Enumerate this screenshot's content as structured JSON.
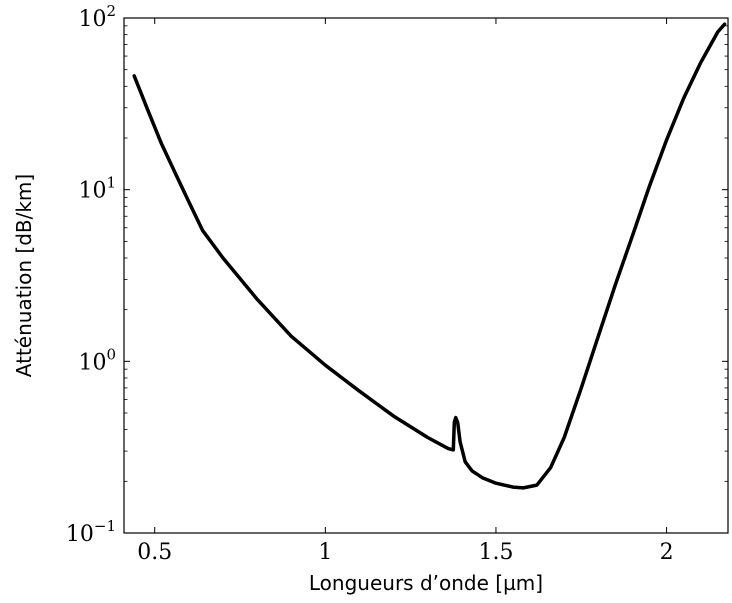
{
  "chart_data": {
    "type": "line",
    "xlabel": "Longueurs d’onde [µm]",
    "ylabel": "Atténuation [dB/km]",
    "xlim": [
      0.41,
      2.18
    ],
    "ylim": [
      0.1,
      100
    ],
    "yscale": "log",
    "grid": false,
    "x_ticks": [
      {
        "value": 0.5,
        "label": "0.5"
      },
      {
        "value": 1,
        "label": "1"
      },
      {
        "value": 1.5,
        "label": "1.5"
      },
      {
        "value": 2,
        "label": "2"
      }
    ],
    "y_ticks": [
      {
        "value": 0.1,
        "base": "10",
        "exp": "−1"
      },
      {
        "value": 1,
        "base": "10",
        "exp": "0"
      },
      {
        "value": 10,
        "base": "10",
        "exp": "1"
      },
      {
        "value": 100,
        "base": "10",
        "exp": "2"
      }
    ],
    "series": [
      {
        "color": "#000000",
        "x": [
          0.44,
          0.48,
          0.52,
          0.56,
          0.6,
          0.64,
          0.7,
          0.8,
          0.9,
          1.0,
          1.1,
          1.2,
          1.3,
          1.36,
          1.375,
          1.378,
          1.382,
          1.388,
          1.395,
          1.41,
          1.43,
          1.46,
          1.5,
          1.55,
          1.58,
          1.62,
          1.66,
          1.7,
          1.75,
          1.8,
          1.85,
          1.9,
          1.95,
          2.0,
          2.05,
          2.1,
          2.15,
          2.17
        ],
        "y": [
          46,
          29,
          18.5,
          12.5,
          8.5,
          5.8,
          4.0,
          2.3,
          1.4,
          0.95,
          0.67,
          0.48,
          0.36,
          0.31,
          0.305,
          0.44,
          0.47,
          0.44,
          0.34,
          0.26,
          0.23,
          0.21,
          0.195,
          0.185,
          0.183,
          0.19,
          0.24,
          0.36,
          0.7,
          1.4,
          2.8,
          5.4,
          10.5,
          19.5,
          34,
          55,
          83,
          92
        ]
      }
    ]
  }
}
